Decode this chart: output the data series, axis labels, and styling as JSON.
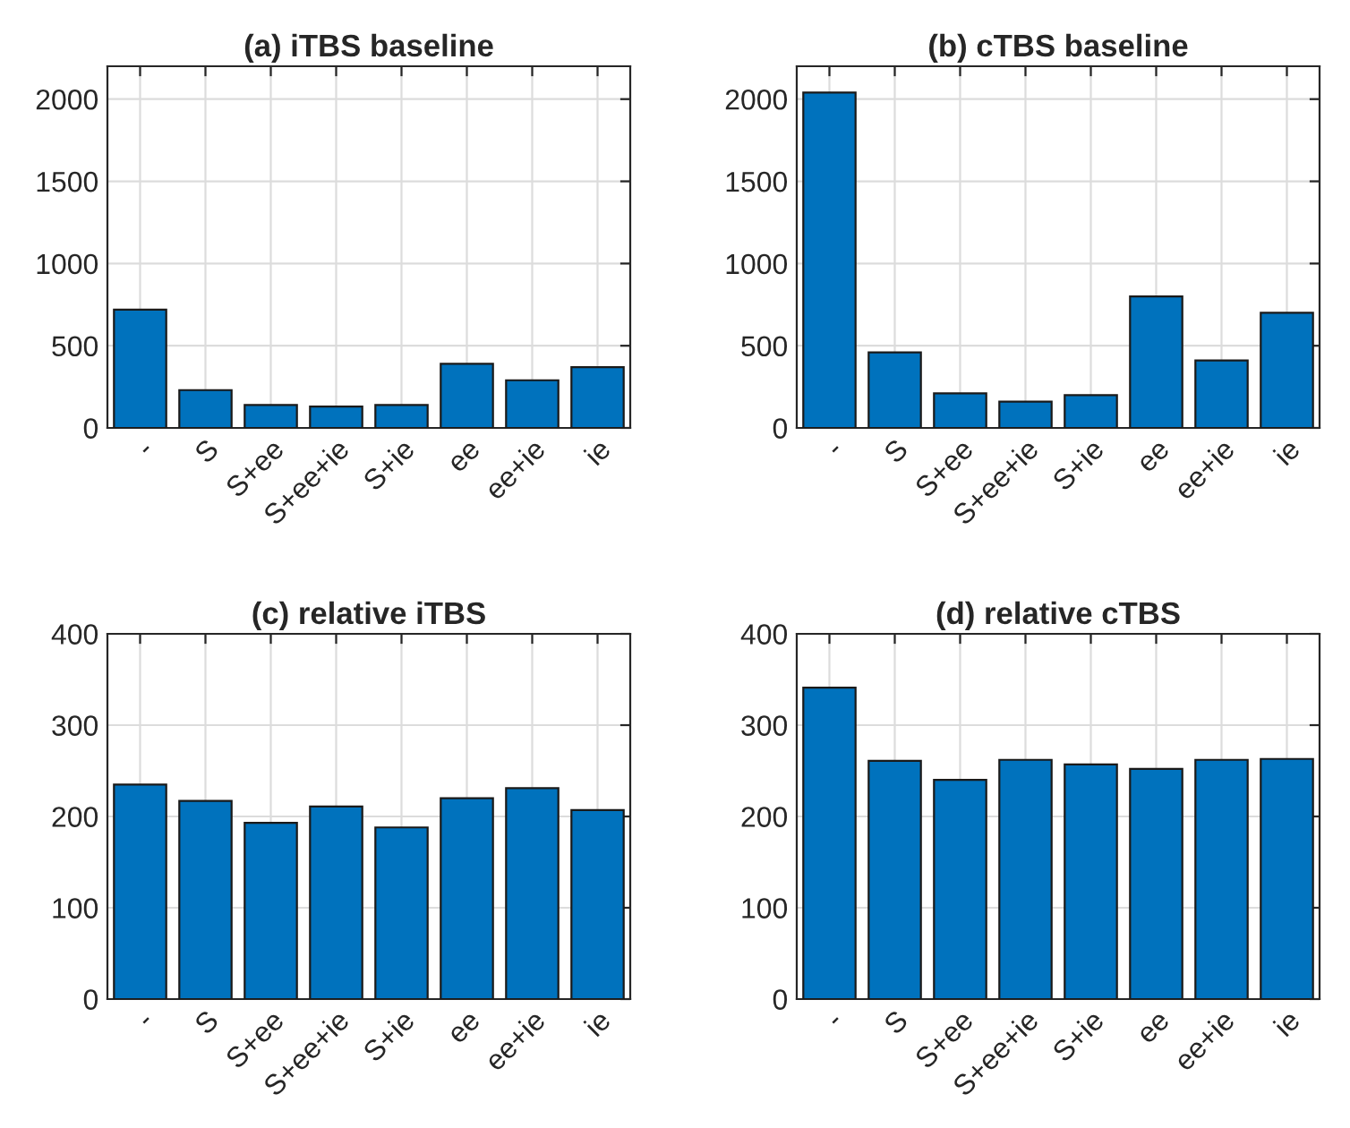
{
  "chart_data": [
    {
      "type": "bar",
      "title": "(a) iTBS baseline",
      "categories": [
        "-",
        "S",
        "S+ee",
        "S+ee+ie",
        "S+ie",
        "ee",
        "ee+ie",
        "ie"
      ],
      "values": [
        720,
        230,
        140,
        130,
        140,
        390,
        290,
        370
      ],
      "color": "#0072bd",
      "ylim": [
        0,
        2200
      ],
      "yticks": [
        0,
        500,
        1000,
        1500,
        2000
      ],
      "grid": true
    },
    {
      "type": "bar",
      "title": "(b) cTBS baseline",
      "categories": [
        "-",
        "S",
        "S+ee",
        "S+ee+ie",
        "S+ie",
        "ee",
        "ee+ie",
        "ie"
      ],
      "values": [
        2040,
        460,
        210,
        160,
        200,
        800,
        410,
        700
      ],
      "color": "#0072bd",
      "ylim": [
        0,
        2200
      ],
      "yticks": [
        0,
        500,
        1000,
        1500,
        2000
      ],
      "grid": true
    },
    {
      "type": "bar",
      "title": "(c) relative iTBS",
      "categories": [
        "-",
        "S",
        "S+ee",
        "S+ee+ie",
        "S+ie",
        "ee",
        "ee+ie",
        "ie"
      ],
      "values": [
        235,
        217,
        193,
        211,
        188,
        220,
        231,
        207
      ],
      "color": "#0072bd",
      "ylim": [
        0,
        400
      ],
      "yticks": [
        0,
        100,
        200,
        300,
        400
      ],
      "grid": true
    },
    {
      "type": "bar",
      "title": "(d) relative cTBS",
      "categories": [
        "-",
        "S",
        "S+ee",
        "S+ee+ie",
        "S+ie",
        "ee",
        "ee+ie",
        "ie"
      ],
      "values": [
        341,
        261,
        240,
        262,
        257,
        252,
        262,
        263
      ],
      "color": "#0072bd",
      "ylim": [
        0,
        400
      ],
      "yticks": [
        0,
        100,
        200,
        300,
        400
      ],
      "grid": true
    }
  ]
}
